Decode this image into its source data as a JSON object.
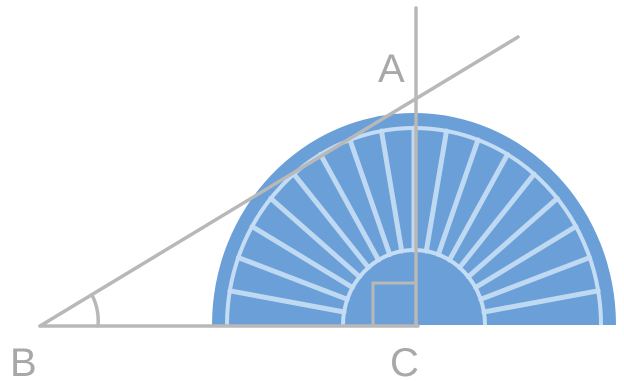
{
  "points": {
    "a": "A",
    "b": "B",
    "c": "C"
  },
  "colors": {
    "protractor_fill": "#6a9fd8",
    "protractor_lines": "#c4ddf4",
    "construction_lines": "#b8b8b8",
    "labels": "#a8a8a8",
    "background": "#ffffff"
  }
}
